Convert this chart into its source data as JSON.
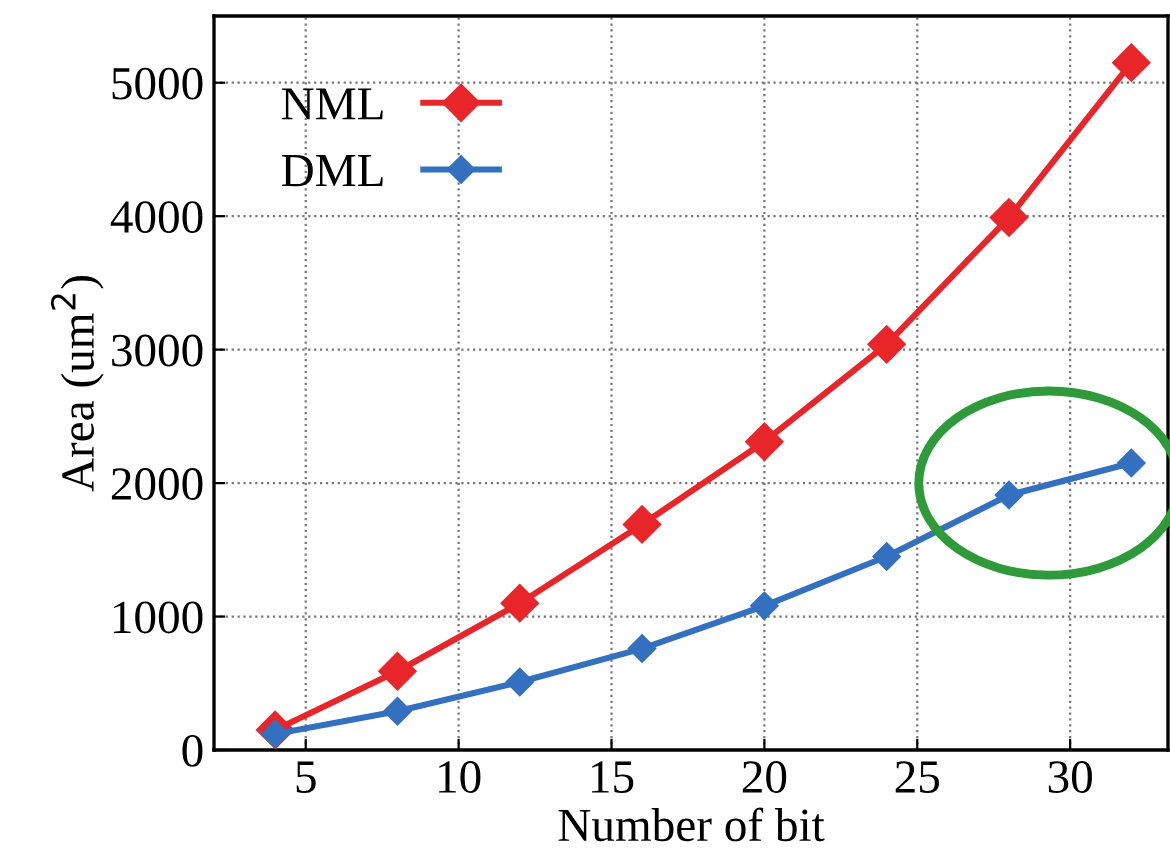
{
  "chart_data": {
    "type": "line",
    "xlabel": "Number of bit",
    "ylabel": "Area (um$^{2}$)",
    "x": [
      4,
      8,
      12,
      16,
      20,
      24,
      28,
      32
    ],
    "series": [
      {
        "name": "NML",
        "color": "#e8262a",
        "values": [
          150,
          590,
          1100,
          1690,
          2310,
          3040,
          3990,
          5150
        ]
      },
      {
        "name": "DML",
        "color": "#3370c0",
        "values": [
          120,
          290,
          510,
          760,
          1080,
          1450,
          1910,
          2150
        ]
      }
    ],
    "xlim": [
      2,
      33.2
    ],
    "xticks": [
      5,
      10,
      15,
      20,
      25,
      30
    ],
    "ylim": [
      0,
      5500
    ],
    "yticks": [
      0,
      1000,
      2000,
      3000,
      4000,
      5000
    ],
    "grid": true,
    "legend": "top left",
    "marker": "diamond",
    "line_style": "solid"
  }
}
